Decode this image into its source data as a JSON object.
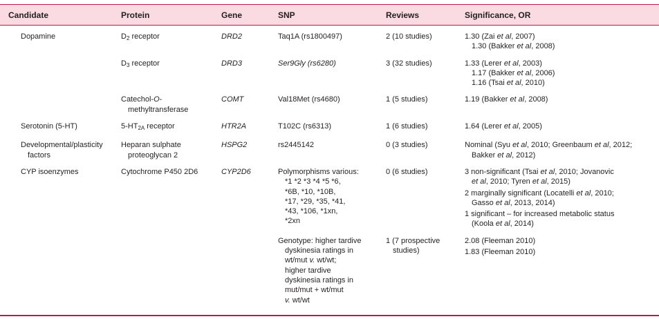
{
  "table": {
    "columns": [
      "Candidate",
      "Protein",
      "Gene",
      "SNP",
      "Reviews",
      "Significance, OR"
    ],
    "rows": [
      [
        [
          [
            "Dopamine"
          ]
        ],
        [
          [
            [
              "D",
              {
                "text": "2",
                "sub": true
              },
              " receptor"
            ]
          ]
        ],
        [
          [
            [
              {
                "text": "DRD2",
                "italic": true
              }
            ]
          ]
        ],
        [
          [
            "Taq1A (rs1800497)"
          ]
        ],
        [
          [
            "2 (10 studies)"
          ]
        ],
        [
          [
            [
              "1.30 (Zai ",
              {
                "text": "et al",
                "italic": true
              },
              ", 2007)"
            ],
            [
              "1.30 (Bakker ",
              {
                "text": "et al",
                "italic": true
              },
              ", 2008)"
            ]
          ]
        ]
      ],
      [
        [],
        [
          [
            [
              "D",
              {
                "text": "3",
                "sub": true
              },
              " receptor"
            ]
          ]
        ],
        [
          [
            [
              {
                "text": "DRD3",
                "italic": true
              }
            ]
          ]
        ],
        [
          [
            [
              {
                "text": "Ser9Gly (rs6280)",
                "italic": true
              }
            ]
          ]
        ],
        [
          [
            "3 (32 studies)"
          ]
        ],
        [
          [
            [
              "1.33 (Lerer ",
              {
                "text": "et al",
                "italic": true
              },
              ", 2003)"
            ],
            [
              "1.17 (Bakker ",
              {
                "text": "et al",
                "italic": true
              },
              ", 2006)"
            ],
            [
              "1.16 (Tsai ",
              {
                "text": "et al",
                "italic": true
              },
              ", 2010)"
            ]
          ]
        ]
      ],
      [
        [],
        [
          [
            [
              "Catechol-",
              {
                "text": "O",
                "italic": true
              },
              "-"
            ],
            "methyltransferase"
          ]
        ],
        [
          [
            [
              {
                "text": "COMT",
                "italic": true
              }
            ]
          ]
        ],
        [
          [
            "Val18Met (rs4680)"
          ]
        ],
        [
          [
            "1 (5 studies)"
          ]
        ],
        [
          [
            [
              "1.19 (Bakker ",
              {
                "text": "et al",
                "italic": true
              },
              ", 2008)"
            ]
          ]
        ]
      ],
      [
        [
          [
            "Serotonin (5-HT)"
          ]
        ],
        [
          [
            [
              "5-HT",
              {
                "text": "2A",
                "sub": true
              },
              " receptor"
            ]
          ]
        ],
        [
          [
            [
              {
                "text": "HTR2A",
                "italic": true
              }
            ]
          ]
        ],
        [
          [
            "T102C (rs6313)"
          ]
        ],
        [
          [
            "1 (6 studies)"
          ]
        ],
        [
          [
            [
              "1.64 (Lerer ",
              {
                "text": "et al",
                "italic": true
              },
              ", 2005)"
            ]
          ]
        ]
      ],
      [
        [
          [
            "Developmental/plasticity",
            "factors"
          ]
        ],
        [
          [
            "Heparan sulphate",
            "proteoglycan 2"
          ]
        ],
        [
          [
            [
              {
                "text": "HSPG2",
                "italic": true
              }
            ]
          ]
        ],
        [
          [
            "rs2445142"
          ]
        ],
        [
          [
            "0 (3 studies)"
          ]
        ],
        [
          [
            [
              "Nominal (Syu ",
              {
                "text": "et al",
                "italic": true
              },
              ", 2010; Greenbaum ",
              {
                "text": "et al",
                "italic": true
              },
              ", 2012;"
            ],
            [
              "Bakker ",
              {
                "text": "et al",
                "italic": true
              },
              ", 2012)"
            ]
          ]
        ]
      ],
      [
        [
          [
            "CYP isoenzymes"
          ]
        ],
        [
          [
            "Cytochrome P450 2D6"
          ]
        ],
        [
          [
            [
              {
                "text": "CYP2D6",
                "italic": true
              }
            ]
          ]
        ],
        [
          [
            "Polymorphisms various:",
            "*1 *2 *3 *4 *5 *6,",
            "*6B, *10, *10B,",
            "*17, *29, *35, *41,",
            "*43, *106, *1xn,",
            "*2xn"
          ]
        ],
        [
          [
            "0 (6 studies)"
          ]
        ],
        [
          [
            [
              "3 non-significant (Tsai ",
              {
                "text": "et al",
                "italic": true
              },
              ", 2010; Jovanovic"
            ],
            [
              {
                "text": "et al",
                "italic": true
              },
              ", 2010; Tyren ",
              {
                "text": "et al",
                "italic": true
              },
              ", 2015)"
            ]
          ],
          [
            [
              "2 marginally significant (Locatelli ",
              {
                "text": "et al",
                "italic": true
              },
              ", 2010;"
            ],
            [
              "Gasso ",
              {
                "text": "et al",
                "italic": true
              },
              ", 2013, 2014)"
            ]
          ],
          [
            "1 significant – for increased metabolic status",
            [
              "(Koola ",
              {
                "text": "et al",
                "italic": true
              },
              ", 2014)"
            ]
          ]
        ]
      ],
      [
        [],
        [],
        [],
        [
          [
            "Genotype: higher tardive",
            "dyskinesia ratings in",
            [
              "wt/mut ",
              {
                "text": "v.",
                "italic": true
              },
              " wt/wt;"
            ],
            "higher tardive",
            "dyskinesia ratings in",
            "mut/mut + wt/mut",
            [
              {
                "text": "v.",
                "italic": true
              },
              " wt/wt"
            ]
          ]
        ],
        [
          [
            "1 (7 prospective",
            "studies)"
          ]
        ],
        [
          [
            "2.08 (Fleeman 2010)"
          ],
          [
            "1.83 (Fleeman 2010)"
          ]
        ]
      ]
    ]
  }
}
